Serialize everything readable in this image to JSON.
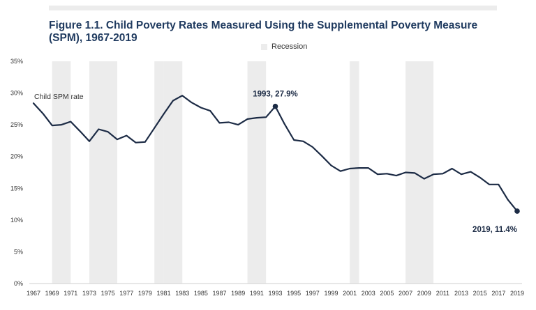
{
  "chart_data": {
    "type": "line",
    "title": "Figure 1.1. Child Poverty Rates Measured Using the Supplemental Poverty Measure (SPM), 1967-2019",
    "legend": [
      {
        "label": "Recession",
        "color": "#ececec"
      }
    ],
    "series": [
      {
        "name": "Child SPM rate",
        "color": "#1c2b45",
        "x": [
          1967,
          1968,
          1969,
          1970,
          1971,
          1972,
          1973,
          1974,
          1975,
          1976,
          1977,
          1978,
          1979,
          1980,
          1981,
          1982,
          1983,
          1984,
          1985,
          1986,
          1987,
          1988,
          1989,
          1990,
          1991,
          1992,
          1993,
          1994,
          1995,
          1996,
          1997,
          1998,
          1999,
          2000,
          2001,
          2002,
          2003,
          2004,
          2005,
          2006,
          2007,
          2008,
          2009,
          2010,
          2011,
          2012,
          2013,
          2014,
          2015,
          2016,
          2017,
          2018,
          2019
        ],
        "values": [
          28.4,
          26.8,
          24.9,
          25.0,
          25.5,
          24.0,
          22.4,
          24.3,
          23.9,
          22.7,
          23.3,
          22.2,
          22.3,
          24.5,
          26.7,
          28.8,
          29.6,
          28.5,
          27.7,
          27.2,
          25.3,
          25.4,
          25.0,
          25.9,
          26.1,
          26.2,
          27.9,
          25.1,
          22.6,
          22.4,
          21.5,
          20.1,
          18.6,
          17.7,
          18.1,
          18.2,
          18.2,
          17.2,
          17.3,
          17.0,
          17.5,
          17.4,
          16.5,
          17.2,
          17.3,
          18.1,
          17.2,
          17.6,
          16.7,
          15.6,
          15.6,
          13.2,
          11.4
        ]
      }
    ],
    "recessions": [
      [
        1969,
        1971
      ],
      [
        1973,
        1976
      ],
      [
        1980,
        1981
      ],
      [
        1981,
        1983
      ],
      [
        1990,
        1992
      ],
      [
        2001,
        2002
      ],
      [
        2007,
        2010
      ]
    ],
    "y_ticks": [
      0,
      5,
      10,
      15,
      20,
      25,
      30,
      35
    ],
    "y_tick_labels": [
      "0%",
      "5%",
      "10%",
      "15%",
      "20%",
      "25%",
      "30%",
      "35%"
    ],
    "x_ticks": [
      1967,
      1969,
      1971,
      1973,
      1975,
      1977,
      1979,
      1981,
      1983,
      1985,
      1987,
      1989,
      1991,
      1993,
      1995,
      1997,
      1999,
      2001,
      2003,
      2005,
      2007,
      2009,
      2011,
      2013,
      2015,
      2017,
      2019
    ],
    "xlim": [
      1967,
      2019
    ],
    "ylim": [
      0,
      35
    ],
    "annotations": [
      {
        "year": 1993,
        "value": 27.9,
        "text": "1993, 27.9%"
      },
      {
        "year": 2019,
        "value": 11.4,
        "text": "2019, 11.4%"
      }
    ]
  }
}
